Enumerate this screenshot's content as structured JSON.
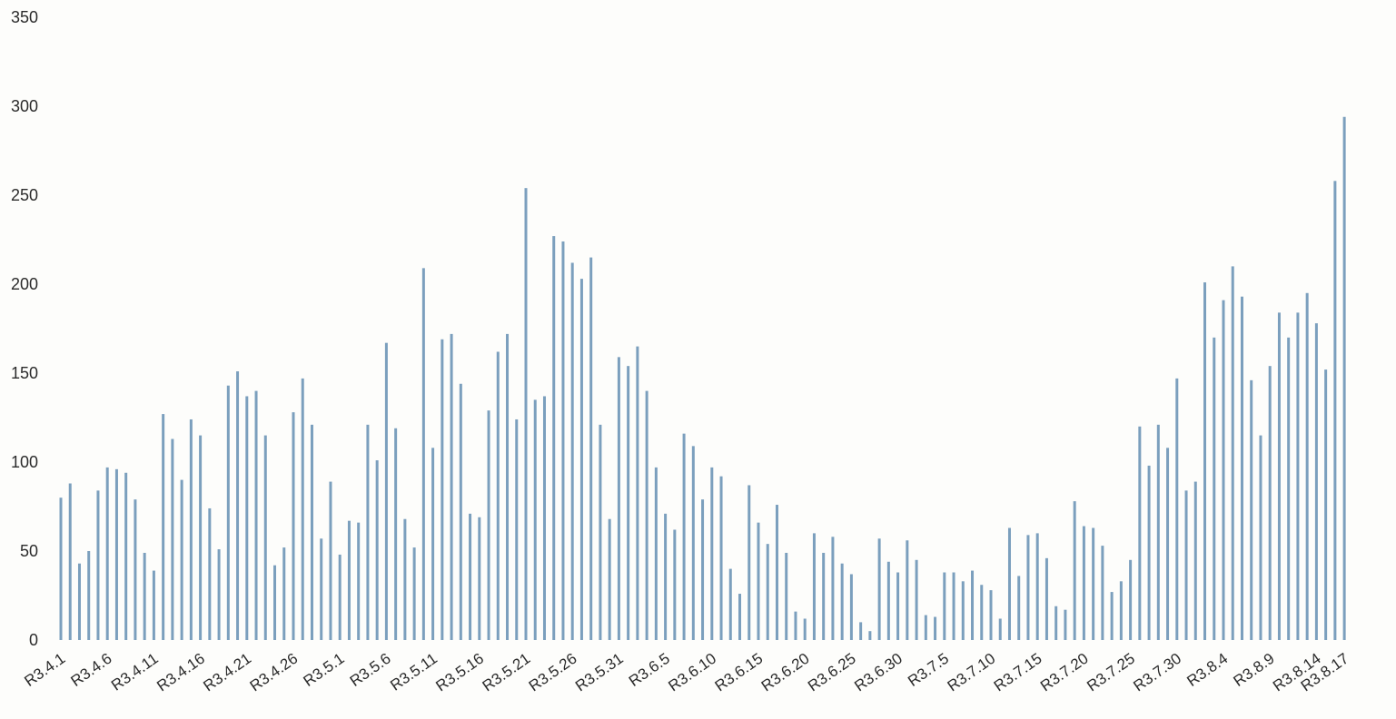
{
  "colors": {
    "bar": "#7b9fbd",
    "text": "#2b2b2b",
    "background": "#fdfdfb"
  },
  "chart_data": {
    "type": "bar",
    "title": "",
    "xlabel": "",
    "ylabel": "",
    "ylim": [
      0,
      350
    ],
    "yticks": [
      0,
      50,
      100,
      150,
      200,
      250,
      300,
      350
    ],
    "grid": false,
    "legend": "none",
    "start_label": "R3.4.1",
    "xtick_labels": [
      "R3.4.1",
      "R3.4.6",
      "R3.4.11",
      "R3.4.16",
      "R3.4.21",
      "R3.4.26",
      "R3.5.1",
      "R3.5.6",
      "R3.5.11",
      "R3.5.16",
      "R3.5.21",
      "R3.5.26",
      "R3.5.31",
      "R3.6.5",
      "R3.6.10",
      "R3.6.15",
      "R3.6.20",
      "R3.6.25",
      "R3.6.30",
      "R3.7.5",
      "R3.7.10",
      "R3.7.15",
      "R3.7.20",
      "R3.7.25",
      "R3.7.30",
      "R3.8.4",
      "R3.8.9",
      "R3.8.14",
      "R3.8.17"
    ],
    "values": [
      80,
      88,
      43,
      50,
      84,
      97,
      96,
      94,
      79,
      49,
      39,
      127,
      113,
      90,
      124,
      115,
      74,
      51,
      143,
      151,
      137,
      140,
      115,
      42,
      52,
      128,
      147,
      121,
      57,
      89,
      48,
      67,
      66,
      121,
      101,
      167,
      119,
      68,
      52,
      209,
      108,
      169,
      172,
      144,
      71,
      69,
      129,
      162,
      172,
      124,
      254,
      135,
      137,
      227,
      224,
      212,
      203,
      215,
      121,
      68,
      159,
      154,
      165,
      140,
      97,
      71,
      62,
      116,
      109,
      79,
      97,
      92,
      40,
      26,
      87,
      66,
      54,
      76,
      49,
      16,
      12,
      60,
      49,
      58,
      43,
      37,
      10,
      5,
      57,
      44,
      38,
      56,
      45,
      14,
      13,
      38,
      38,
      33,
      39,
      31,
      28,
      12,
      63,
      36,
      59,
      60,
      46,
      19,
      17,
      78,
      64,
      63,
      53,
      27,
      33,
      45,
      120,
      98,
      121,
      108,
      147,
      84,
      89,
      201,
      170,
      191,
      210,
      193,
      146,
      115,
      154,
      184,
      170,
      184,
      195,
      178,
      152,
      258,
      294
    ]
  }
}
